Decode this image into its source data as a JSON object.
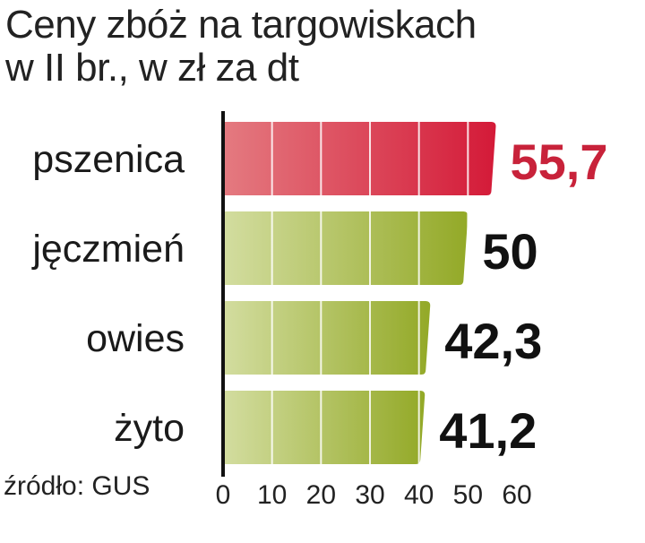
{
  "title_line1": "Ceny zbóż na targowiskach",
  "title_line2": "w II br., w zł za dt",
  "source": "źródło: GUS",
  "chart_data": {
    "type": "bar",
    "orientation": "horizontal",
    "categories": [
      "pszenica",
      "jęczmień",
      "owies",
      "żyto"
    ],
    "values": [
      55.7,
      50,
      42.3,
      41.2
    ],
    "value_labels": [
      "55,7",
      "50",
      "42,3",
      "41,2"
    ],
    "xlim": [
      0,
      60
    ],
    "xticks": [
      "0",
      "10",
      "20",
      "30",
      "40",
      "50",
      "60"
    ],
    "grid": true,
    "colors": {
      "highlight": "#c8223a",
      "highlight_bar_light": "#e47a80",
      "highlight_bar_dark": "#d41a38",
      "bar_light": "#d3dda0",
      "bar_dark": "#93a927",
      "highlight_index": 0
    }
  }
}
